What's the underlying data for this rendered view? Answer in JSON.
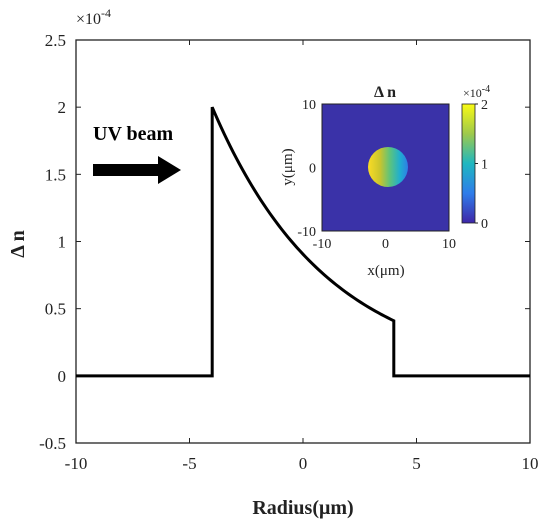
{
  "chart_data": [
    {
      "type": "line",
      "x": [
        -10,
        -4,
        -4,
        4,
        4,
        10
      ],
      "y": [
        0,
        0,
        2.0,
        0.41,
        0,
        0
      ],
      "curve_segment": {
        "x_start": -4,
        "x_end": 4,
        "y_start": 2.0,
        "y_end": 0.41,
        "shape": "exponential-decay"
      },
      "xlabel": "Radius(μm)",
      "ylabel": "Δ n",
      "y_scale_factor": "×10",
      "y_scale_exponent": "-4",
      "xlim": [
        -10,
        10
      ],
      "ylim": [
        -0.5,
        2.5
      ],
      "xticks": [
        "-10",
        "-5",
        "0",
        "5",
        "10"
      ],
      "yticks": [
        "-0.5",
        "0",
        "0.5",
        "1",
        "1.5",
        "2",
        "2.5"
      ],
      "annotation": "UV beam",
      "line_color": "#000000",
      "grid": false
    },
    {
      "type": "heatmap",
      "title": "Δ n",
      "xlabel": "x(μm)",
      "ylabel": "y(μm)",
      "xlim": [
        -10,
        10
      ],
      "ylim": [
        -10,
        10
      ],
      "xticks": [
        "-10",
        "0",
        "10"
      ],
      "yticks": [
        "10",
        "0",
        "-10"
      ],
      "disk_radius": 4,
      "colorbar_ticks": [
        "2",
        "1",
        "0"
      ],
      "colorbar_range": [
        0,
        2
      ],
      "colorbar_exponent_text": "×10",
      "colorbar_exponent": "-4",
      "background_color": "#3a32a8",
      "colormap": [
        "#3e26a8",
        "#2f7dea",
        "#1fb7c0",
        "#9ec94b",
        "#f9fa14"
      ]
    }
  ]
}
